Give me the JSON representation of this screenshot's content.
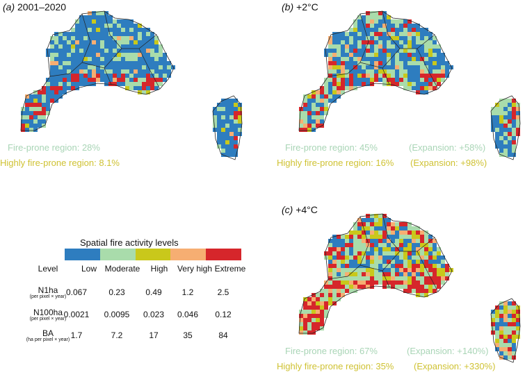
{
  "colors": {
    "low": "#2e7dbf",
    "moderate": "#a9dcab",
    "high": "#c9c81b",
    "very_high": "#f6ae72",
    "extreme": "#d6262b",
    "fire_prone_text": "#a9d5b6",
    "highly_fire_prone_text": "#cfc233",
    "border": "#222222"
  },
  "panels": [
    {
      "id": "a",
      "label": "(a)",
      "title": "2001–2020",
      "fire_prone": "Fire-prone region: 28%",
      "highly_fire_prone": "Highly fire-prone region: 8.1%",
      "fire_prone_expansion": "",
      "highly_fire_prone_expansion": ""
    },
    {
      "id": "b",
      "label": "(b)",
      "title": "+2°C",
      "fire_prone": "Fire-prone region: 45%",
      "highly_fire_prone": "Highly fire-prone region: 16%",
      "fire_prone_expansion": "(Expansion: +58%)",
      "highly_fire_prone_expansion": "(Expansion: +98%)"
    },
    {
      "id": "c",
      "label": "(c)",
      "title": "+4°C",
      "fire_prone": "Fire-prone region: 67%",
      "highly_fire_prone": "Highly fire-prone region: 35%",
      "fire_prone_expansion": "(Expansion: +140%)",
      "highly_fire_prone_expansion": "(Expansion: +330%)"
    }
  ],
  "legend": {
    "title": "Spatial fire activity levels",
    "level_header": "Level",
    "levels": [
      "Low",
      "Moderate",
      "High",
      "Very high",
      "Extreme"
    ],
    "rows": [
      {
        "name": "N1ha",
        "unit": "(per pixel × year)",
        "values": [
          "0.067",
          "0.23",
          "0.49",
          "1.2",
          "2.5"
        ]
      },
      {
        "name": "N100ha",
        "unit": "(per pixel × year)",
        "values": [
          "0.0021",
          "0.0095",
          "0.023",
          "0.046",
          "0.12"
        ]
      },
      {
        "name": "BA",
        "unit": "(ha per pixel × year)",
        "values": [
          "1.7",
          "7.2",
          "17",
          "35",
          "84"
        ]
      }
    ]
  }
}
